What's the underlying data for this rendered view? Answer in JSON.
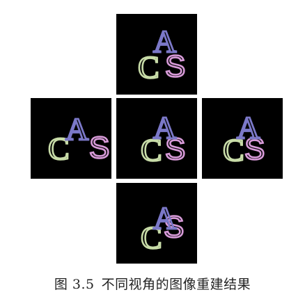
{
  "figure": {
    "caption_number": "图 3.5",
    "caption_text": "不同视角的图像重建结果",
    "colors": {
      "background": "#000000",
      "letter_A": "#7b78c8",
      "letter_C": "#c8dca8",
      "letter_S": "#d79ad8"
    },
    "views": [
      {
        "id": "top",
        "letters": {
          "A": "A",
          "C": "C",
          "S": "S"
        }
      },
      {
        "id": "left",
        "letters": {
          "A": "A",
          "C": "C",
          "S": "S"
        }
      },
      {
        "id": "center",
        "letters": {
          "A": "A",
          "C": "C",
          "S": "S"
        }
      },
      {
        "id": "right",
        "letters": {
          "A": "A",
          "C": "C",
          "S": "S"
        }
      },
      {
        "id": "bottom",
        "letters": {
          "A": "A",
          "C": "C",
          "S": "S"
        }
      }
    ]
  }
}
